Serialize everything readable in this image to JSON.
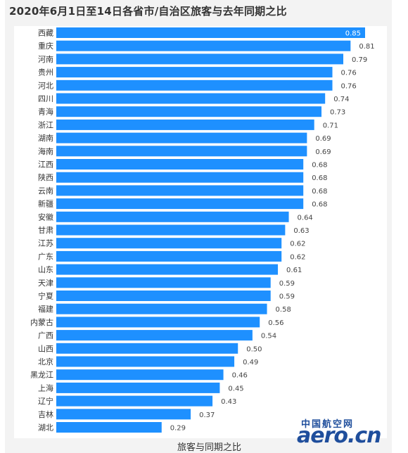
{
  "chart_data": {
    "type": "bar",
    "orientation": "horizontal",
    "title": "2020年6月1日至14日各省市/自治区旅客与去年同期之比",
    "xlabel": "旅客与同期之比",
    "categories": [
      "西藏",
      "重庆",
      "河南",
      "贵州",
      "河北",
      "四川",
      "青海",
      "浙江",
      "湖南",
      "海南",
      "江西",
      "陕西",
      "云南",
      "新疆",
      "安徽",
      "甘肃",
      "江苏",
      "广东",
      "山东",
      "天津",
      "宁夏",
      "福建",
      "内蒙古",
      "广西",
      "山西",
      "北京",
      "黑龙江",
      "上海",
      "辽宁",
      "吉林",
      "湖北"
    ],
    "values": [
      0.85,
      0.81,
      0.79,
      0.76,
      0.76,
      0.74,
      0.73,
      0.71,
      0.69,
      0.69,
      0.68,
      0.68,
      0.68,
      0.68,
      0.64,
      0.63,
      0.62,
      0.62,
      0.61,
      0.59,
      0.59,
      0.58,
      0.56,
      0.54,
      0.5,
      0.49,
      0.46,
      0.45,
      0.43,
      0.37,
      0.29
    ],
    "value_labels": [
      "0.85",
      "0.81",
      "0.79",
      "0.76",
      "0.76",
      "0.74",
      "0.73",
      "0.71",
      "0.69",
      "0.69",
      "0.68",
      "0.68",
      "0.68",
      "0.68",
      "0.64",
      "0.63",
      "0.62",
      "0.62",
      "0.61",
      "0.59",
      "0.59",
      "0.58",
      "0.56",
      "0.54",
      "0.50",
      "0.49",
      "0.46",
      "0.45",
      "0.43",
      "0.37",
      "0.29"
    ],
    "xlim": [
      0,
      0.85
    ],
    "grid": false,
    "bar_color": "#1e90ff",
    "highlight_label_color": "#ffffff",
    "label_color": "#444444"
  },
  "watermark": {
    "cn_text": "中国航空网",
    "en_text": "aero.cn",
    "color": "#1f4e9c"
  }
}
